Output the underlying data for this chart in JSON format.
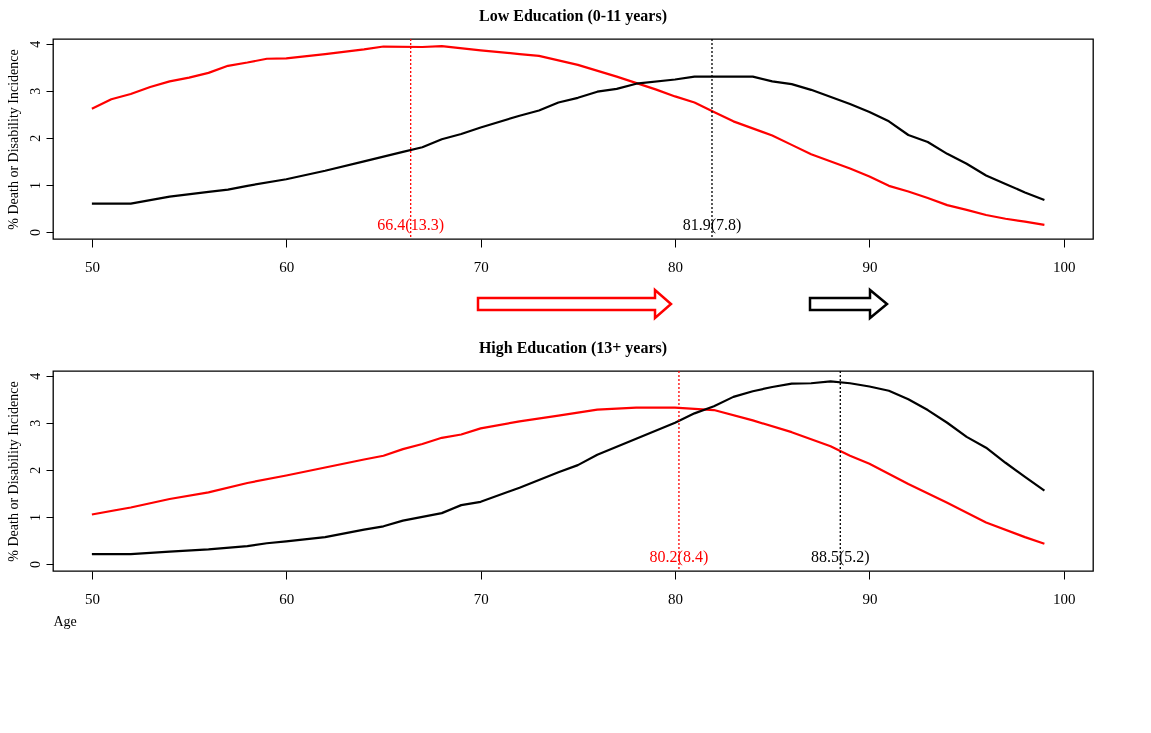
{
  "chart_data": [
    {
      "type": "line",
      "title": "Low Education (0-11 years)",
      "ylabel": "% Death or Disability Incidence",
      "xlim": [
        48,
        101.5
      ],
      "ylim": [
        -0.15,
        4.1
      ],
      "xticks": [
        50,
        60,
        70,
        80,
        90,
        100
      ],
      "yticks": [
        0,
        1,
        2,
        3,
        4
      ],
      "line_style": "solid",
      "series": [
        {
          "color": "#ff0000",
          "x": [
            50,
            51,
            52,
            53,
            54,
            55,
            56,
            57,
            58,
            59,
            60,
            62,
            64,
            65,
            67,
            68,
            70,
            72,
            73,
            75,
            77,
            79,
            80,
            81,
            82,
            83,
            85,
            86,
            87,
            89,
            90,
            91,
            92,
            93,
            94,
            95,
            96,
            97,
            98,
            99
          ],
          "values": [
            2.62,
            2.82,
            2.93,
            3.08,
            3.2,
            3.28,
            3.38,
            3.53,
            3.6,
            3.68,
            3.69,
            3.78,
            3.88,
            3.94,
            3.93,
            3.95,
            3.86,
            3.78,
            3.74,
            3.55,
            3.3,
            3.03,
            2.88,
            2.75,
            2.55,
            2.35,
            2.05,
            1.85,
            1.65,
            1.35,
            1.18,
            0.98,
            0.86,
            0.72,
            0.57,
            0.47,
            0.36,
            0.28,
            0.22,
            0.15
          ]
        },
        {
          "color": "#000000",
          "x": [
            50,
            52,
            54,
            56,
            57,
            58,
            60,
            62,
            64,
            66,
            67,
            68,
            69,
            70,
            72,
            73,
            74,
            75,
            76,
            77,
            78,
            80,
            81,
            84,
            85,
            86,
            87,
            89,
            90,
            91,
            92,
            93,
            94,
            95,
            96,
            97,
            98,
            99
          ],
          "values": [
            0.6,
            0.6,
            0.75,
            0.85,
            0.9,
            0.98,
            1.12,
            1.3,
            1.5,
            1.7,
            1.8,
            1.97,
            2.08,
            2.22,
            2.47,
            2.58,
            2.75,
            2.85,
            2.98,
            3.04,
            3.15,
            3.24,
            3.3,
            3.3,
            3.2,
            3.14,
            3.02,
            2.72,
            2.55,
            2.35,
            2.06,
            1.91,
            1.66,
            1.45,
            1.2,
            1.02,
            0.84,
            0.68
          ]
        }
      ],
      "ref_lines": [
        {
          "axis": "x",
          "value": 66.4,
          "label": "66.4(13.3)",
          "color": "#ff0000",
          "line_style": "dotted"
        },
        {
          "axis": "x",
          "value": 81.9,
          "label": "81.9(7.8)",
          "color": "#000000",
          "line_style": "dotted"
        }
      ]
    },
    {
      "type": "line",
      "title": "High Education (13+ years)",
      "xlabel": "Age",
      "ylabel": "% Death or Disability Incidence",
      "xlim": [
        48,
        101.5
      ],
      "ylim": [
        -0.15,
        4.1
      ],
      "xticks": [
        50,
        60,
        70,
        80,
        90,
        100
      ],
      "yticks": [
        0,
        1,
        2,
        3,
        4
      ],
      "line_style": "solid",
      "series": [
        {
          "color": "#ff0000",
          "x": [
            50,
            52,
            54,
            56,
            58,
            60,
            62,
            64,
            65,
            66,
            67,
            68,
            69,
            70,
            72,
            74,
            76,
            78,
            80,
            82,
            84,
            86,
            88,
            89,
            90,
            92,
            94,
            96,
            98,
            99
          ],
          "values": [
            1.05,
            1.2,
            1.38,
            1.52,
            1.72,
            1.88,
            2.05,
            2.22,
            2.3,
            2.44,
            2.55,
            2.68,
            2.75,
            2.88,
            3.03,
            3.15,
            3.28,
            3.32,
            3.32,
            3.27,
            3.05,
            2.8,
            2.5,
            2.3,
            2.13,
            1.7,
            1.3,
            0.88,
            0.57,
            0.43
          ]
        },
        {
          "color": "#000000",
          "x": [
            50,
            52,
            54,
            56,
            58,
            59,
            60,
            62,
            64,
            65,
            66,
            68,
            69,
            70,
            72,
            74,
            75,
            76,
            78,
            80,
            81,
            82,
            83,
            84,
            85,
            86,
            87,
            88,
            89,
            90,
            91,
            92,
            93,
            94,
            95,
            96,
            97,
            98,
            99
          ],
          "values": [
            0.21,
            0.21,
            0.26,
            0.31,
            0.38,
            0.44,
            0.48,
            0.57,
            0.73,
            0.8,
            0.92,
            1.08,
            1.25,
            1.32,
            1.62,
            1.95,
            2.1,
            2.32,
            2.66,
            3.0,
            3.2,
            3.35,
            3.55,
            3.67,
            3.76,
            3.83,
            3.84,
            3.88,
            3.84,
            3.77,
            3.68,
            3.5,
            3.27,
            3.0,
            2.7,
            2.47,
            2.15,
            1.85,
            1.56
          ]
        }
      ],
      "ref_lines": [
        {
          "axis": "x",
          "value": 80.2,
          "label": "80.2(8.4)",
          "color": "#ff0000",
          "line_style": "dotted"
        },
        {
          "axis": "x",
          "value": 88.5,
          "label": "88.5(5.2)",
          "color": "#000000",
          "line_style": "dotted"
        }
      ]
    }
  ]
}
